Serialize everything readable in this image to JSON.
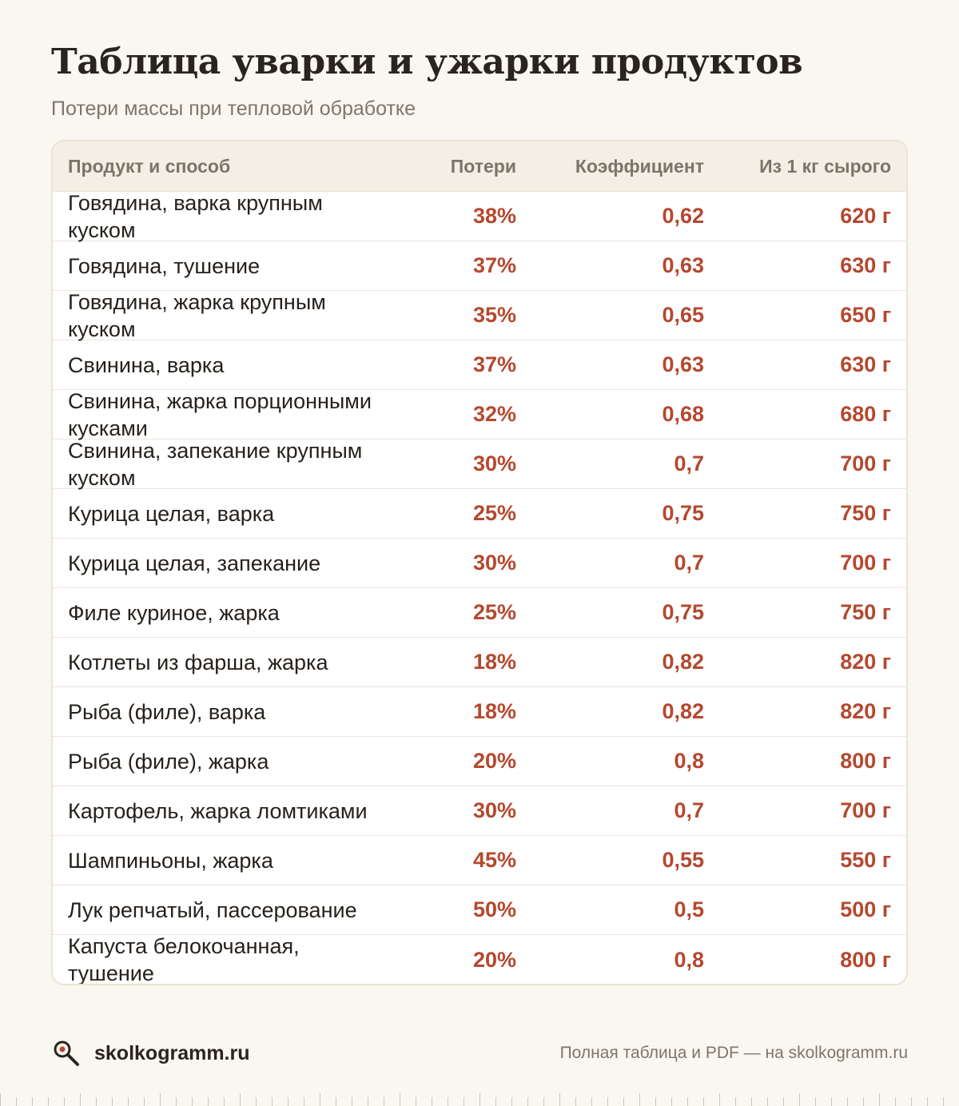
{
  "title": "Таблица уварки и ужарки продуктов",
  "subtitle": "Потери массы при тепловой обработке",
  "table": {
    "headers": [
      "Продукт и способ",
      "Потери",
      "Коэффициент",
      "Из 1 кг сырого"
    ],
    "rows": [
      {
        "name": "Говядина, варка крупным куском",
        "loss": "38%",
        "coef": "0,62",
        "yield": "620 г"
      },
      {
        "name": "Говядина, тушение",
        "loss": "37%",
        "coef": "0,63",
        "yield": "630 г"
      },
      {
        "name": "Говядина, жарка крупным куском",
        "loss": "35%",
        "coef": "0,65",
        "yield": "650 г"
      },
      {
        "name": "Свинина, варка",
        "loss": "37%",
        "coef": "0,63",
        "yield": "630 г"
      },
      {
        "name": "Свинина, жарка порционными кусками",
        "loss": "32%",
        "coef": "0,68",
        "yield": "680 г"
      },
      {
        "name": "Свинина, запекание крупным куском",
        "loss": "30%",
        "coef": "0,7",
        "yield": "700 г"
      },
      {
        "name": "Курица целая, варка",
        "loss": "25%",
        "coef": "0,75",
        "yield": "750 г"
      },
      {
        "name": "Курица целая, запекание",
        "loss": "30%",
        "coef": "0,7",
        "yield": "700 г"
      },
      {
        "name": "Филе куриное, жарка",
        "loss": "25%",
        "coef": "0,75",
        "yield": "750 г"
      },
      {
        "name": "Котлеты из фарша, жарка",
        "loss": "18%",
        "coef": "0,82",
        "yield": "820 г"
      },
      {
        "name": "Рыба (филе), варка",
        "loss": "18%",
        "coef": "0,82",
        "yield": "820 г"
      },
      {
        "name": "Рыба (филе), жарка",
        "loss": "20%",
        "coef": "0,8",
        "yield": "800 г"
      },
      {
        "name": "Картофель, жарка ломтиками",
        "loss": "30%",
        "coef": "0,7",
        "yield": "700 г"
      },
      {
        "name": "Шампиньоны, жарка",
        "loss": "45%",
        "coef": "0,55",
        "yield": "550 г"
      },
      {
        "name": "Лук репчатый, пассерование",
        "loss": "50%",
        "coef": "0,5",
        "yield": "500 г"
      },
      {
        "name": "Капуста белокочанная, тушение",
        "loss": "20%",
        "coef": "0,8",
        "yield": "800 г"
      }
    ]
  },
  "footer": {
    "logo_icon": "magnifier-icon",
    "site": "skolkogramm.ru",
    "note": "Полная таблица и PDF — на skolkogramm.ru"
  },
  "colors": {
    "background": "#faf7f0",
    "accent": "#b5482f",
    "header_bg": "#f4efe4"
  }
}
